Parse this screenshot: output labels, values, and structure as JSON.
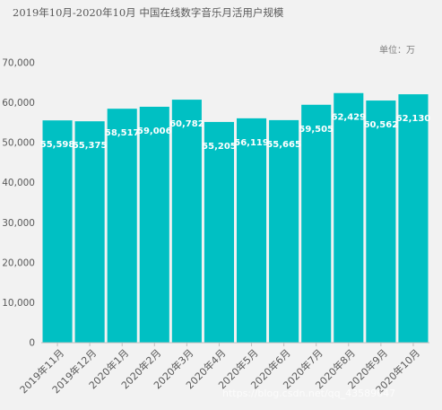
{
  "chart_data": {
    "type": "bar",
    "title": "2019年10月-2020年10月  中国在线数字音乐月活用户规模",
    "unit_label": "单位：万",
    "categories": [
      "2019年11月",
      "2019年12月",
      "2020年1月",
      "2020年2月",
      "2020年3月",
      "2020年4月",
      "2020年5月",
      "2020年6月",
      "2020年7月",
      "2020年8月",
      "2020年9月",
      "2020年10月"
    ],
    "values": [
      55598,
      55375,
      58517,
      59006,
      60782,
      55205,
      56119,
      55665,
      59505,
      62429,
      60562,
      62130
    ],
    "value_labels": [
      "55,598",
      "55,375",
      "58,517",
      "59,006",
      "60,782",
      "55,205",
      "56,119",
      "55,665",
      "59,505",
      "62,429",
      "60,562",
      "62,130"
    ],
    "ylim": [
      0,
      70000
    ],
    "yticks": [
      "0",
      "10,000",
      "20,000",
      "30,000",
      "40,000",
      "50,000",
      "60,000",
      "70,000"
    ],
    "ytick_values": [
      0,
      10000,
      20000,
      30000,
      40000,
      50000,
      60000,
      70000
    ],
    "grid": false,
    "colors": {
      "bar": "#00c0c3",
      "label": "#ffffff",
      "axis_text": "#595959",
      "axis_line": "#bfbfbf"
    }
  },
  "watermark": "https://blog.csdn.net/qq_43589647"
}
